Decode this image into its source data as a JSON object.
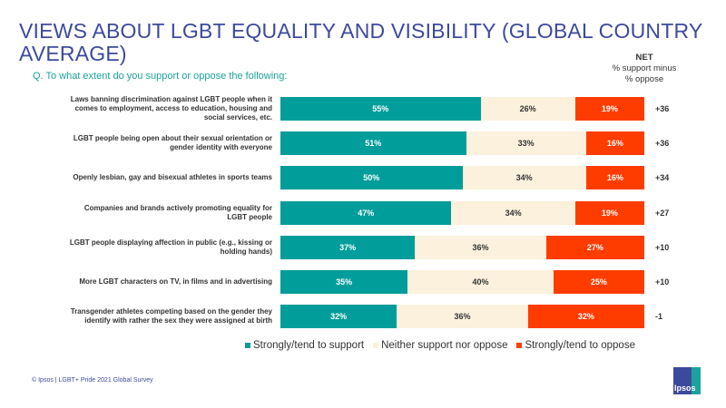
{
  "chart_data": {
    "type": "bar",
    "orientation": "horizontal-stacked",
    "title": "VIEWS ABOUT LGBT EQUALITY AND VISIBILITY (GLOBAL COUNTRY AVERAGE)",
    "subtitle": "Q. To what extent do you support or oppose the following:",
    "net_header": {
      "title": "NET",
      "line1": "% support minus",
      "line2": "% oppose"
    },
    "categories": [
      "Laws banning discrimination against LGBT people when it comes to employment, access to education, housing and social services, etc.",
      "LGBT people being open about their sexual orientation or gender identity with everyone",
      "Openly lesbian, gay and bisexual athletes in sports teams",
      "Companies and brands actively promoting equality for LGBT people",
      "LGBT people displaying affection in public (e.g., kissing or holding hands)",
      "More LGBT characters on TV, in films and in advertising",
      "Transgender athletes competing based on the gender they identify with rather the sex they were assigned at birth"
    ],
    "series": [
      {
        "name": "Strongly/tend to support",
        "color": "#009d9a",
        "values": [
          55,
          51,
          50,
          47,
          37,
          35,
          32
        ]
      },
      {
        "name": "Neither support nor oppose",
        "color": "#fbf1dc",
        "values": [
          26,
          33,
          34,
          34,
          36,
          40,
          36
        ]
      },
      {
        "name": "Strongly/tend to oppose",
        "color": "#ff3c00",
        "values": [
          19,
          16,
          16,
          19,
          27,
          25,
          32
        ]
      }
    ],
    "net": [
      "+36",
      "+36",
      "+34",
      "+27",
      "+10",
      "+10",
      "-1"
    ],
    "xlim": [
      0,
      100
    ],
    "legend": "bottom"
  },
  "footer": "© Ipsos | LGBT+ Pride 2021 Global Survey",
  "logo": "Ipsos"
}
